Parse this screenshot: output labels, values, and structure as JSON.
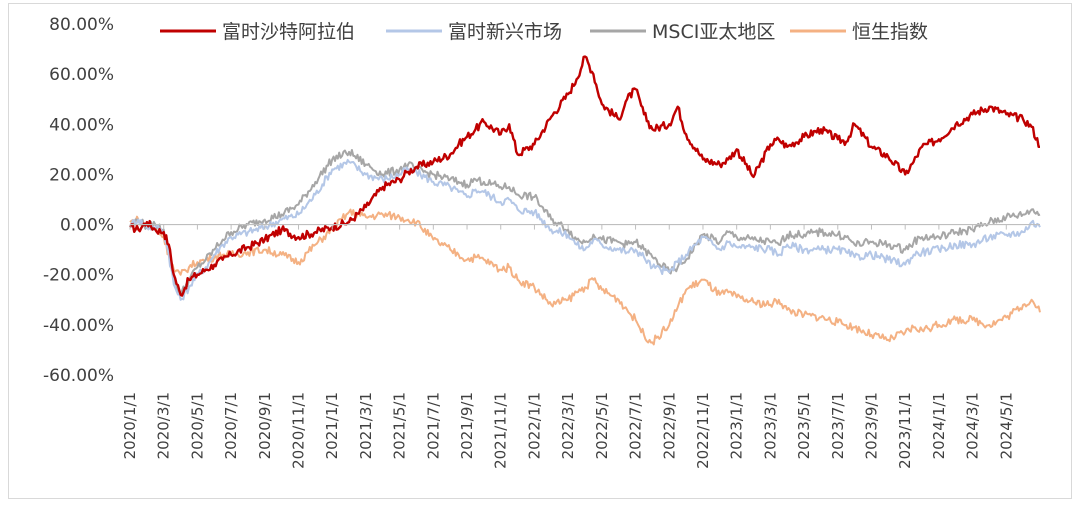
{
  "chart_data": {
    "type": "line",
    "title": "",
    "xlabel": "",
    "ylabel": "",
    "ylim": [
      -60,
      80
    ],
    "y_ticks": [
      80,
      60,
      40,
      20,
      0,
      -20,
      -40,
      -60
    ],
    "y_tick_labels": [
      "80.00%",
      "60.00%",
      "40.00%",
      "20.00%",
      "0.00%",
      "-20.00%",
      "-40.00%",
      "-60.00%"
    ],
    "x_tick_labels": [
      "2020/1/1",
      "2020/3/1",
      "2020/5/1",
      "2020/7/1",
      "2020/9/1",
      "2020/11/1",
      "2021/1/1",
      "2021/3/1",
      "2021/5/1",
      "2021/7/1",
      "2021/9/1",
      "2021/11/1",
      "2022/1/1",
      "2022/3/1",
      "2022/5/1",
      "2022/7/1",
      "2022/9/1",
      "2022/11/1",
      "2023/1/1",
      "2023/3/1",
      "2023/5/1",
      "2023/7/1",
      "2023/9/1",
      "2023/11/1",
      "2024/1/1",
      "2024/3/1",
      "2024/5/1"
    ],
    "x_range_months": [
      0,
      54
    ],
    "grid": false,
    "legend_position": "top",
    "series": [
      {
        "name": "富时沙特阿拉伯",
        "color": "#c00000",
        "x": [
          0,
          0.5,
          1,
          1.5,
          2,
          2.3,
          2.6,
          3,
          3.5,
          4,
          4.5,
          5,
          5.5,
          6,
          7,
          8,
          9,
          10,
          11,
          12,
          13,
          14,
          15,
          16,
          16.5,
          17,
          18,
          19,
          19.5,
          20,
          20.5,
          21,
          22,
          22.5,
          23,
          24,
          25,
          26,
          26.5,
          27,
          27.5,
          28,
          29,
          29.5,
          30,
          30.5,
          31,
          32,
          32.5,
          33,
          34,
          35,
          35.5,
          36,
          37,
          38,
          38.5,
          39,
          40,
          41,
          42,
          42.5,
          43,
          44,
          45,
          46,
          46.5,
          47,
          48,
          49,
          50,
          51,
          52,
          53,
          53.5,
          54
        ],
        "values": [
          -1,
          -2,
          1,
          -2,
          -3,
          -8,
          -20,
          -28,
          -22,
          -20,
          -18,
          -16,
          -14,
          -12,
          -9,
          -6,
          -2,
          -5,
          -3,
          -1,
          1,
          7,
          15,
          18,
          21,
          23,
          25,
          28,
          32,
          35,
          38,
          41,
          36,
          40,
          28,
          32,
          43,
          52,
          58,
          67,
          60,
          48,
          42,
          50,
          54,
          44,
          38,
          40,
          47,
          36,
          26,
          24,
          26,
          30,
          19,
          32,
          34,
          31,
          35,
          38,
          34,
          33,
          40,
          31,
          27,
          20,
          25,
          31,
          34,
          40,
          44,
          47,
          44,
          42,
          39,
          31
        ]
      },
      {
        "name": "富时新兴市场",
        "color": "#b4c7e7",
        "x": [
          0,
          0.5,
          1,
          1.5,
          2,
          2.3,
          2.6,
          3,
          3.5,
          4,
          4.5,
          5,
          5.5,
          6,
          7,
          8,
          9,
          10,
          11,
          12,
          13,
          14,
          15,
          16,
          16.5,
          17,
          18,
          19,
          19.5,
          20,
          20.5,
          21,
          22,
          22.5,
          23,
          24,
          25,
          26,
          26.5,
          27,
          27.5,
          28,
          29,
          29.5,
          30,
          30.5,
          31,
          32,
          32.5,
          33,
          34,
          35,
          35.5,
          36,
          37,
          38,
          38.5,
          39,
          40,
          41,
          42,
          42.5,
          43,
          44,
          45,
          46,
          46.5,
          47,
          48,
          49,
          50,
          51,
          52,
          53,
          53.5,
          54
        ],
        "values": [
          0,
          2,
          -1,
          -1,
          -3,
          -12,
          -24,
          -30,
          -25,
          -20,
          -17,
          -12,
          -8,
          -5,
          -3,
          -1,
          2,
          4,
          12,
          22,
          25,
          20,
          18,
          20,
          22,
          21,
          17,
          15,
          13,
          11,
          14,
          13,
          9,
          10,
          6,
          5,
          -2,
          -4,
          -8,
          -10,
          -6,
          -8,
          -10,
          -11,
          -10,
          -13,
          -17,
          -19,
          -15,
          -12,
          -5,
          -10,
          -7,
          -9,
          -9,
          -10,
          -12,
          -8,
          -10,
          -10,
          -10,
          -11,
          -13,
          -12,
          -14,
          -16,
          -12,
          -11,
          -10,
          -8,
          -8,
          -5,
          -4,
          -3,
          1,
          -1
        ]
      },
      {
        "name": "MSCI亚太地区",
        "color": "#a6a6a6",
        "x": [
          0,
          0.5,
          1,
          1.5,
          2,
          2.3,
          2.6,
          3,
          3.5,
          4,
          4.5,
          5,
          5.5,
          6,
          7,
          8,
          9,
          10,
          11,
          12,
          13,
          14,
          15,
          16,
          16.5,
          17,
          18,
          19,
          19.5,
          20,
          20.5,
          21,
          22,
          22.5,
          23,
          24,
          25,
          26,
          26.5,
          27,
          27.5,
          28,
          29,
          29.5,
          30,
          30.5,
          31,
          32,
          32.5,
          33,
          34,
          35,
          35.5,
          36,
          37,
          38,
          38.5,
          39,
          40,
          41,
          42,
          42.5,
          43,
          44,
          45,
          46,
          46.5,
          47,
          48,
          49,
          50,
          51,
          52,
          53,
          53.5,
          54
        ],
        "values": [
          0,
          2,
          -1,
          0,
          -2,
          -10,
          -22,
          -28,
          -22,
          -17,
          -14,
          -10,
          -6,
          -3,
          0,
          2,
          4,
          8,
          17,
          26,
          29,
          24,
          20,
          22,
          24,
          22,
          20,
          18,
          17,
          16,
          18,
          17,
          15,
          15,
          12,
          11,
          2,
          -2,
          -6,
          -7,
          -4,
          -6,
          -7,
          -8,
          -7,
          -10,
          -13,
          -19,
          -17,
          -14,
          -4,
          -7,
          -3,
          -5,
          -6,
          -7,
          -8,
          -4,
          -4,
          -3,
          -4,
          -5,
          -8,
          -7,
          -8,
          -10,
          -7,
          -5,
          -5,
          -3,
          -2,
          1,
          3,
          4,
          6,
          4
        ]
      },
      {
        "name": "恒生指数",
        "color": "#f4b183",
        "x": [
          0,
          0.5,
          1,
          1.5,
          2,
          2.3,
          2.6,
          3,
          3.5,
          4,
          4.5,
          5,
          5.5,
          6,
          7,
          8,
          9,
          10,
          11,
          12,
          13,
          14,
          15,
          16,
          16.5,
          17,
          18,
          19,
          19.5,
          20,
          20.5,
          21,
          22,
          22.5,
          23,
          24,
          25,
          26,
          26.5,
          27,
          27.5,
          28,
          29,
          29.5,
          30,
          30.5,
          31,
          32,
          32.5,
          33,
          34,
          35,
          35.5,
          36,
          37,
          38,
          38.5,
          39,
          40,
          41,
          42,
          42.5,
          43,
          44,
          45,
          46,
          46.5,
          47,
          48,
          49,
          50,
          51,
          52,
          53,
          53.5,
          54
        ],
        "values": [
          1,
          2,
          0,
          -2,
          -5,
          -12,
          -18,
          -20,
          -17,
          -15,
          -14,
          -13,
          -12,
          -12,
          -11,
          -10,
          -12,
          -15,
          -8,
          -2,
          5,
          3,
          4,
          3,
          2,
          1,
          -6,
          -10,
          -12,
          -14,
          -13,
          -14,
          -18,
          -17,
          -22,
          -25,
          -32,
          -30,
          -27,
          -25,
          -22,
          -26,
          -30,
          -34,
          -38,
          -44,
          -47,
          -40,
          -33,
          -26,
          -22,
          -28,
          -27,
          -29,
          -31,
          -32,
          -30,
          -34,
          -36,
          -37,
          -39,
          -40,
          -41,
          -44,
          -46,
          -43,
          -41,
          -42,
          -40,
          -38,
          -38,
          -40,
          -37,
          -32,
          -30,
          -35
        ]
      }
    ]
  }
}
